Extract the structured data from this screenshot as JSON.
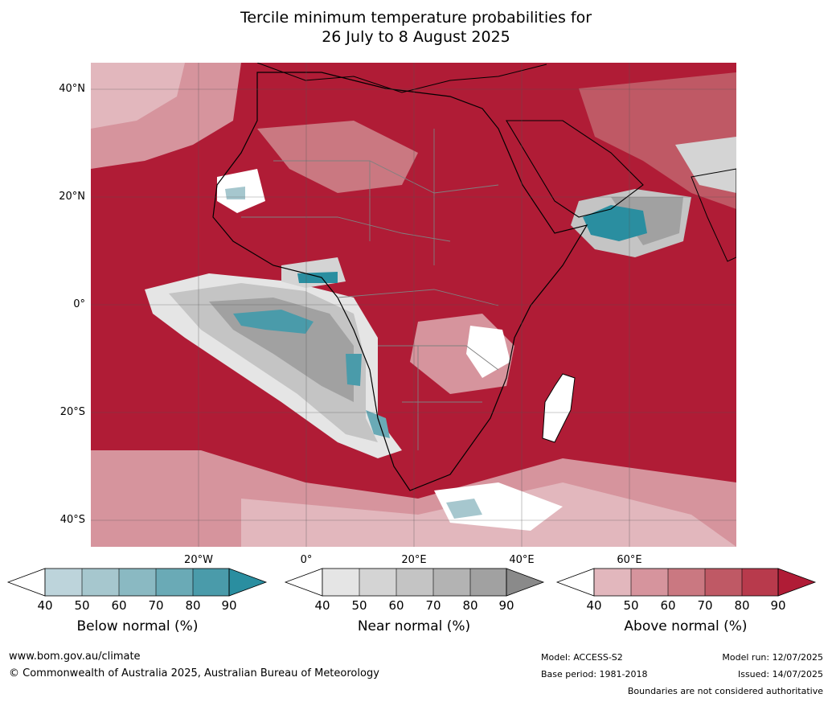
{
  "title": {
    "line1": "Tercile minimum temperature probabilities for",
    "line2": "26 July to 8 August 2025"
  },
  "map": {
    "lat_labels": [
      "40°N",
      "20°N",
      "0°",
      "20°S",
      "40°S"
    ],
    "lon_labels": [
      "20°W",
      "0°",
      "20°E",
      "40°E",
      "60°E"
    ]
  },
  "colorbars": [
    {
      "label": "Below normal (%)",
      "ticks": [
        "40",
        "50",
        "60",
        "70",
        "80",
        "90"
      ],
      "colors": [
        "#ffffff",
        "#bdd4db",
        "#a6c7ce",
        "#8ab9c2",
        "#6aaab6",
        "#4a9baa",
        "#2a8ea0"
      ]
    },
    {
      "label": "Near normal (%)",
      "ticks": [
        "40",
        "50",
        "60",
        "70",
        "80",
        "90"
      ],
      "colors": [
        "#ffffff",
        "#e5e5e5",
        "#d4d4d4",
        "#c4c4c4",
        "#b3b3b3",
        "#a1a1a1",
        "#8a8a8a"
      ]
    },
    {
      "label": "Above normal (%)",
      "ticks": [
        "40",
        "50",
        "60",
        "70",
        "80",
        "90"
      ],
      "colors": [
        "#ffffff",
        "#e2b7bd",
        "#d6949d",
        "#ca7881",
        "#bf5965",
        "#b83a4c",
        "#b01c36"
      ]
    }
  ],
  "footer": {
    "url": "www.bom.gov.au/climate",
    "copyright": "© Commonwealth of Australia 2025, Australian Bureau of Meteorology",
    "model": "Model: ACCESS-S2",
    "base_period": "Base period: 1981-2018",
    "model_run": "Model run: 12/07/2025",
    "issued": "Issued: 14/07/2025",
    "disclaimer": "Boundaries are not considered authoritative"
  }
}
